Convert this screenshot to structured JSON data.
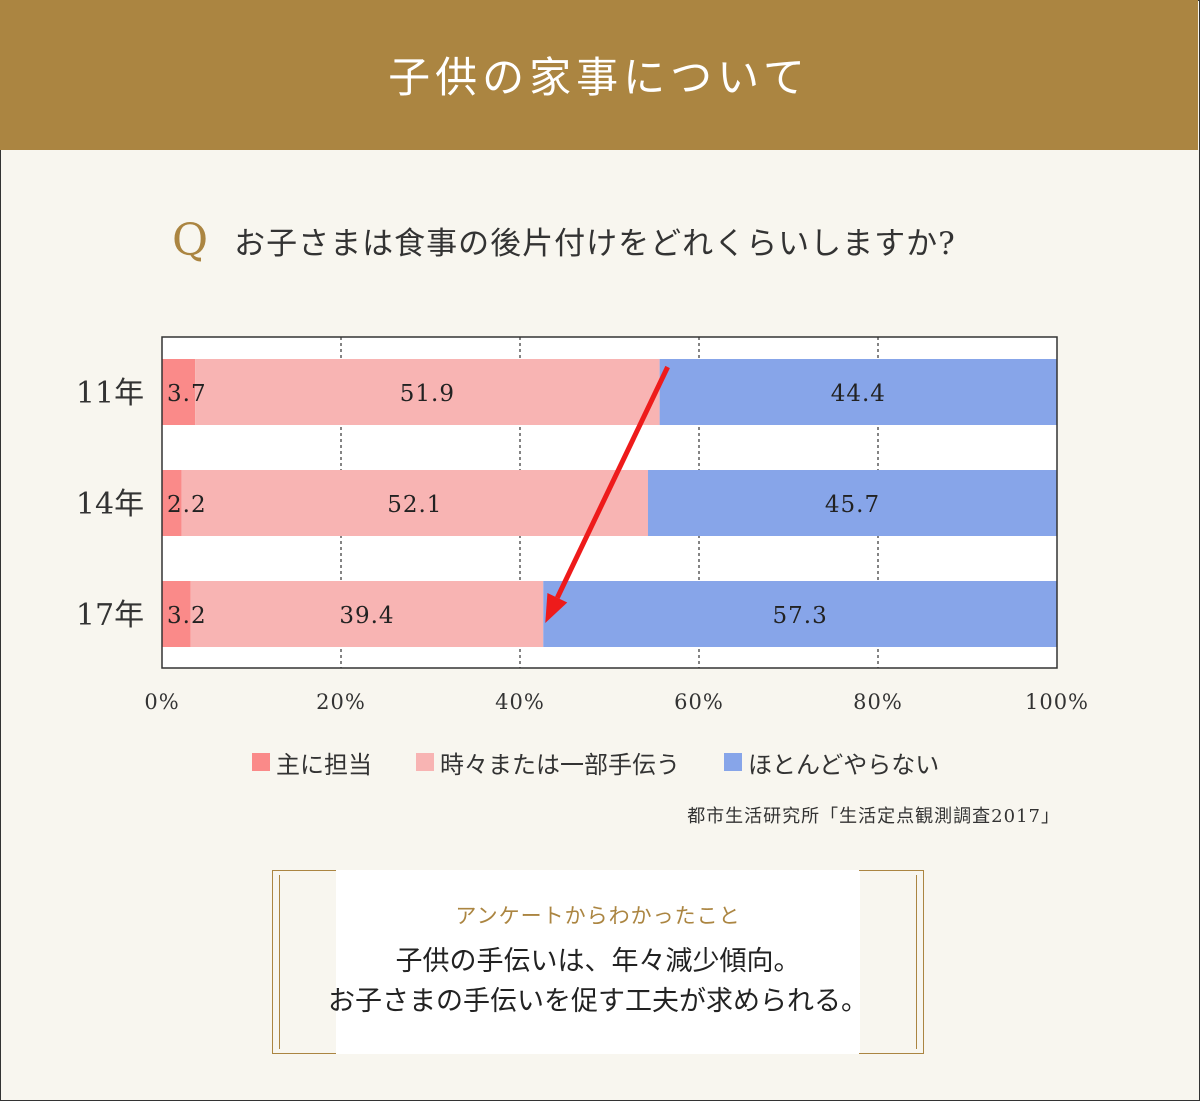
{
  "header": {
    "title": "子供の家事について"
  },
  "question": {
    "mark": "Q",
    "text": "お子さまは食事の後片付けをどれくらいしますか?"
  },
  "chart_data": {
    "type": "bar",
    "orientation": "horizontal",
    "stacked": true,
    "categories": [
      "11年",
      "14年",
      "17年"
    ],
    "series": [
      {
        "name": "主に担当",
        "values": [
          3.7,
          2.2,
          3.2
        ],
        "color": "#fa8a89"
      },
      {
        "name": "時々または一部手伝う",
        "values": [
          51.9,
          52.1,
          39.4
        ],
        "color": "#f8b4b3"
      },
      {
        "name": "ほとんどやらない",
        "values": [
          44.4,
          45.7,
          57.3
        ],
        "color": "#87a5e9"
      }
    ],
    "xlim": [
      0,
      100
    ],
    "xticks": [
      "0%",
      "20%",
      "40%",
      "60%",
      "80%",
      "100%"
    ],
    "grid": "vertical-dashed",
    "legend_position": "bottom",
    "annotation": {
      "type": "arrow",
      "color": "#ee1b1b",
      "from": [
        "11年",
        55.6
      ],
      "to": [
        "17年",
        42.6
      ]
    }
  },
  "source": "都市生活研究所「生活定点観測調査2017」",
  "finding": {
    "label": "アンケートからわかったこと",
    "lines": [
      "子供の手伝いは、年々減少傾向。",
      "お子さまの手伝いを促す工夫が求められる。"
    ]
  }
}
